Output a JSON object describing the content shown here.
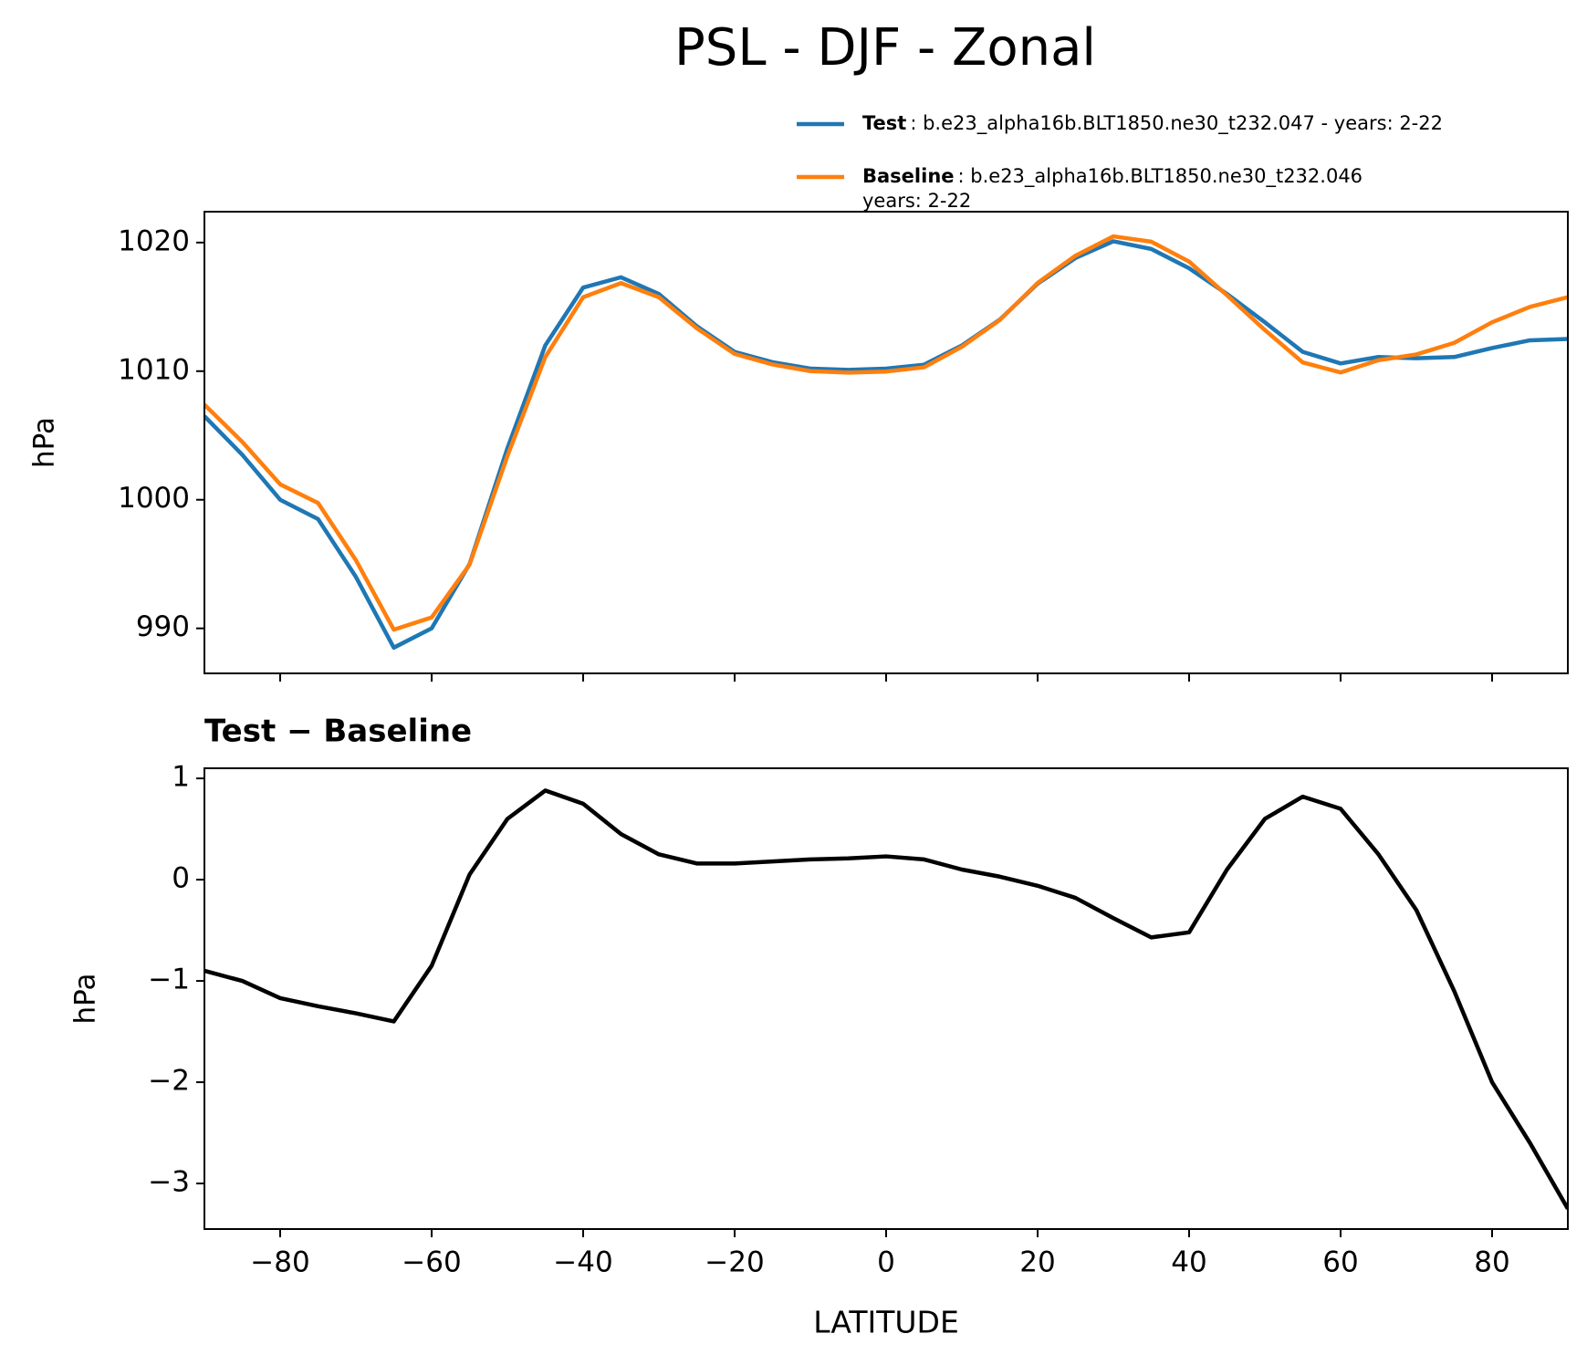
{
  "suptitle": "PSL - DJF - Zonal",
  "chart_data": [
    {
      "type": "line",
      "ylabel": "hPa",
      "x": [
        -90,
        -85,
        -80,
        -75,
        -70,
        -65,
        -60,
        -55,
        -50,
        -45,
        -40,
        -35,
        -30,
        -25,
        -20,
        -15,
        -10,
        -5,
        0,
        5,
        10,
        15,
        20,
        25,
        30,
        35,
        40,
        45,
        50,
        55,
        60,
        65,
        70,
        75,
        80,
        85,
        90
      ],
      "series": [
        {
          "name": "Test",
          "description": [
            ": b.e23_alpha16b.BLT1850.ne30_t232.047 - years: 2-22"
          ],
          "color": "#1f77b4",
          "values": [
            1006.5,
            1003.5,
            1000.0,
            998.5,
            994,
            988.5,
            990,
            995,
            1004,
            1012,
            1016.5,
            1017.3,
            1016,
            1013.5,
            1011.5,
            1010.7,
            1010.2,
            1010.1,
            1010.2,
            1010.5,
            1012,
            1014,
            1016.8,
            1018.8,
            1020.1,
            1019.5,
            1018,
            1016,
            1013.8,
            1011.5,
            1010.6,
            1011.1,
            1011,
            1011.1,
            1011.8,
            1012.4,
            1012.5
          ]
        },
        {
          "name": "Baseline",
          "description": [
            ": b.e23_alpha16b.BLT1850.ne30_t232.046",
            "years: 2-22"
          ],
          "color": "#ff7f0e",
          "values": [
            1007.4,
            1004.5,
            1001.2,
            999.75,
            995.3,
            989.9,
            990.85,
            994.95,
            1003.4,
            1011.1,
            1015.75,
            1016.85,
            1015.75,
            1013.34,
            1011.34,
            1010.52,
            1010.0,
            1009.89,
            1009.97,
            1010.3,
            1011.9,
            1013.97,
            1016.86,
            1018.98,
            1020.48,
            1020.07,
            1018.52,
            1015.9,
            1013.2,
            1010.68,
            1009.9,
            1010.85,
            1011.3,
            1012.2,
            1013.8,
            1015.0,
            1015.75
          ]
        }
      ],
      "xlim": [
        -90,
        90
      ],
      "xticks": [
        -80,
        -60,
        -40,
        -20,
        0,
        20,
        40,
        60,
        80
      ],
      "show_xticklabels": false,
      "ylim": [
        986.5,
        1022.4
      ],
      "yticks": [
        990,
        1000,
        1010,
        1020
      ],
      "legend": "upper right"
    },
    {
      "type": "line",
      "title": "Test − Baseline",
      "xlabel": "LATITUDE",
      "ylabel": "hPa",
      "x": [
        -90,
        -85,
        -80,
        -75,
        -70,
        -65,
        -60,
        -55,
        -50,
        -45,
        -40,
        -35,
        -30,
        -25,
        -20,
        -15,
        -10,
        -5,
        0,
        5,
        10,
        15,
        20,
        25,
        30,
        35,
        40,
        45,
        50,
        55,
        60,
        65,
        70,
        75,
        80,
        85,
        90
      ],
      "series": [
        {
          "color": "#000000",
          "values": [
            -0.9,
            -1.0,
            -1.17,
            -1.25,
            -1.32,
            -1.4,
            -0.85,
            0.05,
            0.6,
            0.88,
            0.75,
            0.45,
            0.25,
            0.16,
            0.16,
            0.18,
            0.2,
            0.21,
            0.23,
            0.2,
            0.1,
            0.03,
            -0.06,
            -0.18,
            -0.38,
            -0.57,
            -0.52,
            0.1,
            0.6,
            0.82,
            0.7,
            0.25,
            -0.3,
            -1.1,
            -2.0,
            -2.6,
            -3.25
          ]
        }
      ],
      "xlim": [
        -90,
        90
      ],
      "xticks": [
        {
          "value": -80,
          "label": "−80"
        },
        {
          "value": -60,
          "label": "−60"
        },
        {
          "value": -40,
          "label": "−40"
        },
        {
          "value": -20,
          "label": "−20"
        },
        0,
        20,
        40,
        60,
        80
      ],
      "show_xticklabels": true,
      "ylim": [
        -3.45,
        1.1
      ],
      "yticks": [
        {
          "value": -3,
          "label": "−3"
        },
        {
          "value": -2,
          "label": "−2"
        },
        {
          "value": -1,
          "label": "−1"
        },
        0,
        1
      ]
    }
  ]
}
